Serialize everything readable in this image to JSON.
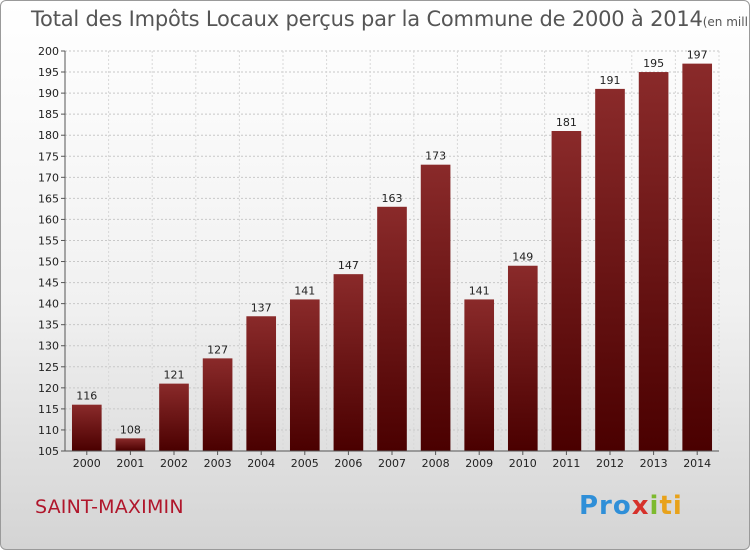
{
  "title": "Total des Impôts Locaux perçus par la Commune de 2000 à 2014",
  "subtitle": "(en milliers d'€)",
  "commune": "SAINT-MAXIMIN",
  "brand": {
    "p1": "Pro",
    "p2": "x",
    "p3": "i",
    "p4": "ti"
  },
  "colors": {
    "bar": "#7a1414",
    "bar_dark": "#4a0000",
    "commune": "#b0162b"
  },
  "chart_data": {
    "type": "bar",
    "categories": [
      "2000",
      "2001",
      "2002",
      "2003",
      "2004",
      "2005",
      "2006",
      "2007",
      "2008",
      "2009",
      "2010",
      "2011",
      "2012",
      "2013",
      "2014"
    ],
    "values": [
      116,
      108,
      121,
      127,
      137,
      141,
      147,
      163,
      173,
      141,
      149,
      181,
      191,
      195,
      197
    ],
    "ylim": [
      105,
      200
    ],
    "yticks": [
      105,
      110,
      115,
      120,
      125,
      130,
      135,
      140,
      145,
      150,
      155,
      160,
      165,
      170,
      175,
      180,
      185,
      190,
      195,
      200
    ],
    "grid": true
  }
}
